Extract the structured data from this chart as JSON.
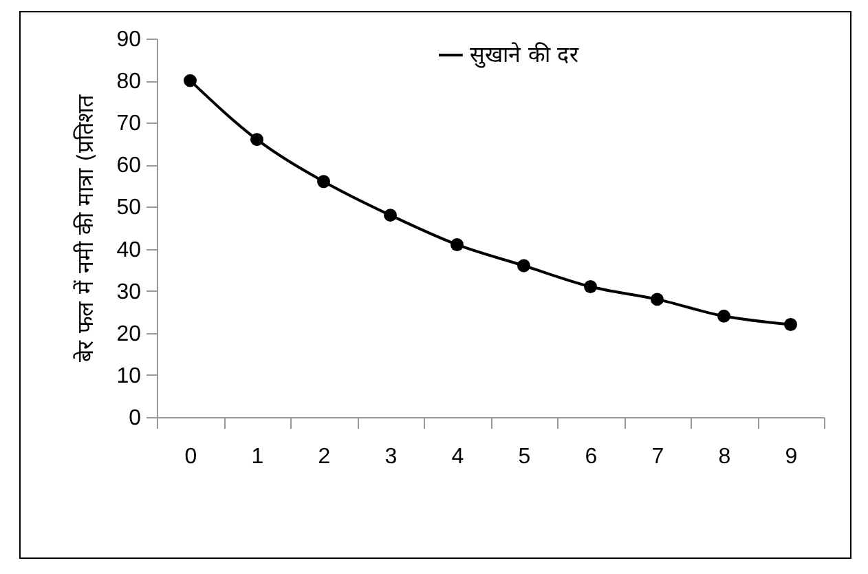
{
  "chart_data": {
    "type": "line",
    "ylabel": "बेर फल में नमी की मात्रा (प्रतिशत",
    "categories": [
      "0",
      "1",
      "2",
      "3",
      "4",
      "5",
      "6",
      "7",
      "8",
      "9"
    ],
    "series": [
      {
        "name": "सुखाने की दर",
        "color": "#000000",
        "values": [
          80,
          66,
          56,
          48,
          41,
          36,
          31,
          28,
          24,
          22
        ]
      }
    ],
    "ylim": [
      0,
      90
    ],
    "yticks": [
      0,
      10,
      20,
      30,
      40,
      50,
      60,
      70,
      80,
      90
    ],
    "grid": false,
    "legend": "top",
    "marker": "circle",
    "line_style": "solid"
  }
}
